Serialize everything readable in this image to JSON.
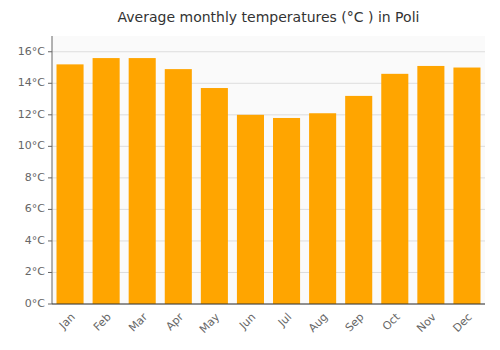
{
  "chart_data": {
    "type": "bar",
    "title": "Average monthly temperatures (°C ) in Poli",
    "categories": [
      "Jan",
      "Feb",
      "Mar",
      "Apr",
      "May",
      "Jun",
      "Jul",
      "Aug",
      "Sep",
      "Oct",
      "Nov",
      "Dec"
    ],
    "values": [
      15.2,
      15.6,
      15.6,
      14.9,
      13.7,
      12.0,
      11.8,
      12.1,
      13.2,
      14.6,
      15.1,
      15.0
    ],
    "color": "#FFA500",
    "ylim": [
      0,
      17
    ],
    "yticks": [
      {
        "value": 0,
        "label": "0°C"
      },
      {
        "value": 2,
        "label": "2°C"
      },
      {
        "value": 4,
        "label": "4°C"
      },
      {
        "value": 6,
        "label": "6°C"
      },
      {
        "value": 8,
        "label": "8°C"
      },
      {
        "value": 10,
        "label": "10°C"
      },
      {
        "value": 12,
        "label": "12°C"
      },
      {
        "value": 14,
        "label": "14°C"
      },
      {
        "value": 16,
        "label": "16°C"
      }
    ],
    "grid": true
  }
}
